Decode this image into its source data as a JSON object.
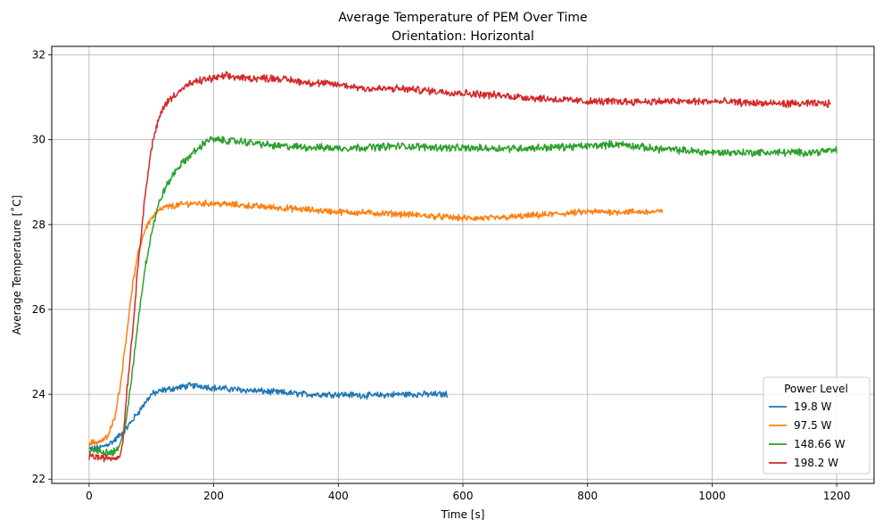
{
  "chart_data": {
    "type": "line",
    "title": "Average Temperature of PEM Over Time",
    "subtitle": "Orientation: Horizontal",
    "xlabel": "Time [s]",
    "ylabel": "Average Temperature [˚C]",
    "xlim": [
      -60,
      1260
    ],
    "ylim": [
      21.9,
      32.2
    ],
    "xticks": [
      0,
      200,
      400,
      600,
      800,
      1000,
      1200
    ],
    "yticks": [
      22,
      24,
      26,
      28,
      30,
      32
    ],
    "grid": true,
    "legend": {
      "title": "Power Level",
      "position": "lower right"
    },
    "series": [
      {
        "name": "19.8 W",
        "color": "#1f77b4",
        "noise": 0.06,
        "x": [
          0,
          20,
          40,
          60,
          80,
          100,
          120,
          140,
          160,
          180,
          200,
          250,
          300,
          350,
          400,
          450,
          500,
          550,
          575
        ],
        "y": [
          22.7,
          22.75,
          22.9,
          23.2,
          23.6,
          24.0,
          24.1,
          24.15,
          24.2,
          24.2,
          24.15,
          24.1,
          24.05,
          24.0,
          24.0,
          23.97,
          24.0,
          24.0,
          24.0
        ]
      },
      {
        "name": "97.5 W",
        "color": "#ff7f0e",
        "noise": 0.06,
        "x": [
          0,
          20,
          30,
          40,
          50,
          60,
          70,
          80,
          90,
          100,
          110,
          120,
          140,
          160,
          200,
          250,
          300,
          400,
          500,
          600,
          650,
          700,
          750,
          800,
          850,
          900,
          920
        ],
        "y": [
          22.85,
          22.9,
          23.0,
          23.4,
          24.2,
          25.4,
          26.6,
          27.4,
          27.9,
          28.15,
          28.3,
          28.4,
          28.45,
          28.5,
          28.5,
          28.45,
          28.4,
          28.3,
          28.25,
          28.15,
          28.15,
          28.2,
          28.25,
          28.3,
          28.3,
          28.3,
          28.3
        ]
      },
      {
        "name": "148.66 W",
        "color": "#2ca02c",
        "noise": 0.07,
        "x": [
          0,
          20,
          40,
          50,
          60,
          70,
          80,
          90,
          100,
          110,
          120,
          140,
          160,
          180,
          190,
          200,
          250,
          300,
          400,
          500,
          600,
          700,
          800,
          850,
          900,
          1000,
          1100,
          1150,
          1200
        ],
        "y": [
          22.7,
          22.65,
          22.65,
          22.8,
          23.4,
          24.6,
          25.9,
          27.0,
          27.8,
          28.4,
          28.8,
          29.3,
          29.6,
          29.85,
          30.0,
          30.0,
          29.95,
          29.85,
          29.8,
          29.85,
          29.8,
          29.8,
          29.85,
          29.9,
          29.8,
          29.7,
          29.7,
          29.7,
          29.75
        ]
      },
      {
        "name": "198.2 W",
        "color": "#d62728",
        "noise": 0.07,
        "x": [
          0,
          20,
          40,
          50,
          55,
          60,
          70,
          80,
          90,
          100,
          110,
          120,
          140,
          160,
          180,
          200,
          220,
          250,
          300,
          350,
          400,
          450,
          500,
          550,
          600,
          700,
          800,
          900,
          1000,
          1100,
          1150,
          1190
        ],
        "y": [
          22.55,
          22.5,
          22.5,
          22.55,
          23.0,
          24.0,
          25.5,
          27.3,
          28.7,
          29.8,
          30.4,
          30.8,
          31.1,
          31.3,
          31.4,
          31.45,
          31.5,
          31.45,
          31.45,
          31.35,
          31.3,
          31.2,
          31.2,
          31.15,
          31.1,
          31.0,
          30.9,
          30.9,
          30.9,
          30.85,
          30.85,
          30.85
        ]
      }
    ]
  }
}
